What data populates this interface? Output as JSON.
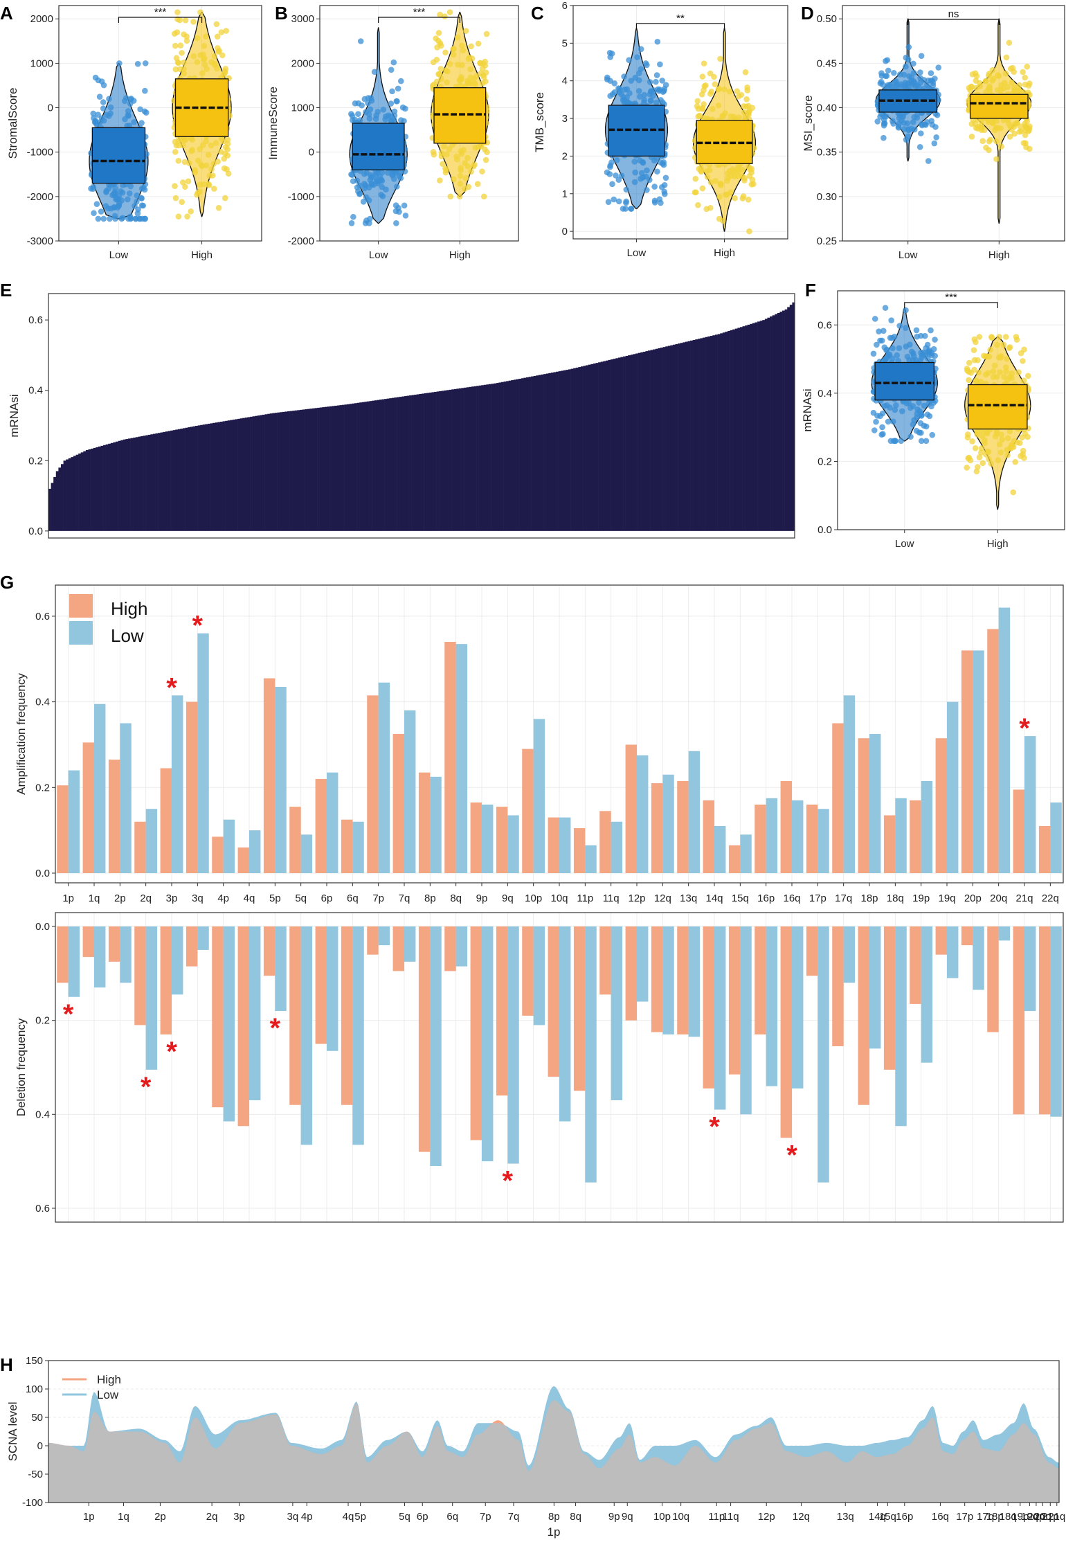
{
  "panels": {
    "A": "A",
    "B": "B",
    "C": "C",
    "D": "D",
    "E": "E",
    "F": "F",
    "G": "G",
    "H": "H"
  },
  "colors": {
    "low_box": "#1f77c6",
    "high_box": "#f5c211",
    "low_pt": "#3a8fd6",
    "high_pt": "#f2d33a",
    "e_bar": "#1e1b4b",
    "g_high": "#f4a582",
    "g_low": "#92c5de",
    "h_high": "#f4a582",
    "h_low": "#92c5de",
    "h_overlap": "#bdbdbd",
    "star": "#e41a1c"
  },
  "chart_data": [
    {
      "id": "A",
      "type": "violin-box",
      "ylabel": "StromalScore",
      "categories": [
        "Low",
        "High"
      ],
      "ylim": [
        -3000,
        2300
      ],
      "yticks": [
        -3000,
        -2000,
        -1000,
        0,
        1000,
        2000
      ],
      "significance": "***",
      "groups": [
        {
          "name": "Low",
          "min": -2500,
          "q1": -1700,
          "median": -1200,
          "q3": -450,
          "max": 1000,
          "whisk_lo": -2500,
          "whisk_hi": 1000
        },
        {
          "name": "High",
          "min": -2450,
          "q1": -650,
          "median": 0,
          "q3": 650,
          "max": 2150,
          "whisk_lo": -2450,
          "whisk_hi": 2150
        }
      ]
    },
    {
      "id": "B",
      "type": "violin-box",
      "ylabel": "ImmuneScore",
      "categories": [
        "Low",
        "High"
      ],
      "ylim": [
        -2000,
        3300
      ],
      "yticks": [
        -2000,
        -1000,
        0,
        1000,
        2000,
        3000
      ],
      "significance": "***",
      "groups": [
        {
          "name": "Low",
          "min": -1600,
          "q1": -400,
          "median": -50,
          "q3": 650,
          "max": 2800,
          "whisk_lo": -1600,
          "whisk_hi": 2800
        },
        {
          "name": "High",
          "min": -1000,
          "q1": 200,
          "median": 850,
          "q3": 1450,
          "max": 3150,
          "whisk_lo": -1000,
          "whisk_hi": 3150
        }
      ]
    },
    {
      "id": "C",
      "type": "violin-box",
      "ylabel": "TMB_score",
      "categories": [
        "Low",
        "High"
      ],
      "ylim": [
        -0.2,
        6
      ],
      "yticks": [
        0,
        1,
        2,
        3,
        4,
        5,
        6
      ],
      "significance": "**",
      "groups": [
        {
          "name": "Low",
          "min": 0.6,
          "q1": 2.0,
          "median": 2.7,
          "q3": 3.35,
          "max": 5.4,
          "whisk_lo": 0.6,
          "whisk_hi": 5.4
        },
        {
          "name": "High",
          "min": 0,
          "q1": 1.8,
          "median": 2.35,
          "q3": 2.95,
          "max": 5.4,
          "whisk_lo": 0,
          "whisk_hi": 5.4
        }
      ]
    },
    {
      "id": "D",
      "type": "violin-box",
      "ylabel": "MSI_score",
      "categories": [
        "Low",
        "High"
      ],
      "ylim": [
        0.25,
        0.515
      ],
      "yticks": [
        0.25,
        0.3,
        0.35,
        0.4,
        0.45,
        0.5
      ],
      "significance": "ns",
      "groups": [
        {
          "name": "Low",
          "min": 0.34,
          "q1": 0.395,
          "median": 0.408,
          "q3": 0.42,
          "max": 0.5,
          "whisk_lo": 0.34,
          "whisk_hi": 0.5
        },
        {
          "name": "High",
          "min": 0.27,
          "q1": 0.388,
          "median": 0.405,
          "q3": 0.415,
          "max": 0.5,
          "whisk_lo": 0.27,
          "whisk_hi": 0.5
        }
      ]
    },
    {
      "id": "E",
      "type": "bar",
      "ylabel": "mRNAsi",
      "ylim": [
        -0.02,
        0.675
      ],
      "yticks": [
        0.0,
        0.2,
        0.4,
        0.6
      ],
      "n_samples": 300,
      "value_curve": [
        [
          0,
          0.12
        ],
        [
          0.01,
          0.17
        ],
        [
          0.02,
          0.2
        ],
        [
          0.05,
          0.23
        ],
        [
          0.1,
          0.26
        ],
        [
          0.2,
          0.3
        ],
        [
          0.3,
          0.335
        ],
        [
          0.4,
          0.36
        ],
        [
          0.5,
          0.39
        ],
        [
          0.6,
          0.42
        ],
        [
          0.7,
          0.46
        ],
        [
          0.8,
          0.51
        ],
        [
          0.9,
          0.56
        ],
        [
          0.96,
          0.6
        ],
        [
          0.99,
          0.63
        ],
        [
          1,
          0.65
        ]
      ]
    },
    {
      "id": "F",
      "type": "violin-box",
      "ylabel": "mRNAsi",
      "categories": [
        "Low",
        "High"
      ],
      "ylim": [
        0,
        0.7
      ],
      "yticks": [
        0.0,
        0.2,
        0.4,
        0.6
      ],
      "significance": "***",
      "groups": [
        {
          "name": "Low",
          "min": 0.26,
          "q1": 0.38,
          "median": 0.43,
          "q3": 0.49,
          "max": 0.65,
          "whisk_lo": 0.26,
          "whisk_hi": 0.65
        },
        {
          "name": "High",
          "min": 0.06,
          "q1": 0.295,
          "median": 0.365,
          "q3": 0.425,
          "max": 0.565,
          "whisk_lo": 0.06,
          "whisk_hi": 0.565
        }
      ]
    },
    {
      "id": "G",
      "type": "bar",
      "legend": [
        "High",
        "Low"
      ],
      "categories": [
        "1p",
        "1q",
        "2p",
        "2q",
        "3p",
        "3q",
        "4p",
        "4q",
        "5p",
        "5q",
        "6p",
        "6q",
        "7p",
        "7q",
        "8p",
        "8q",
        "9p",
        "9q",
        "10p",
        "10q",
        "11p",
        "11q",
        "12p",
        "12q",
        "13q",
        "14q",
        "15q",
        "16p",
        "16q",
        "17p",
        "17q",
        "18p",
        "18q",
        "19p",
        "19q",
        "20p",
        "20q",
        "21q",
        "22q"
      ],
      "amplification": {
        "ylabel": "Amplification frequency",
        "ylim": [
          0,
          0.65
        ],
        "yticks": [
          0.0,
          0.2,
          0.4,
          0.6
        ],
        "series": [
          {
            "name": "High",
            "values": [
              0.205,
              0.305,
              0.265,
              0.12,
              0.245,
              0.4,
              0.085,
              0.06,
              0.455,
              0.155,
              0.22,
              0.125,
              0.415,
              0.325,
              0.235,
              0.54,
              0.165,
              0.155,
              0.29,
              0.13,
              0.105,
              0.145,
              0.3,
              0.21,
              0.215,
              0.17,
              0.065,
              0.16,
              0.215,
              0.16,
              0.35,
              0.315,
              0.135,
              0.17,
              0.315,
              0.52,
              0.57,
              0.195,
              0.11
            ]
          },
          {
            "name": "Low",
            "values": [
              0.24,
              0.395,
              0.35,
              0.15,
              0.415,
              0.56,
              0.125,
              0.1,
              0.435,
              0.09,
              0.235,
              0.12,
              0.445,
              0.38,
              0.225,
              0.535,
              0.16,
              0.135,
              0.36,
              0.13,
              0.065,
              0.12,
              0.275,
              0.23,
              0.285,
              0.11,
              0.09,
              0.175,
              0.17,
              0.15,
              0.415,
              0.325,
              0.175,
              0.215,
              0.4,
              0.52,
              0.62,
              0.32,
              0.165
            ]
          }
        ],
        "stars": [
          "3p",
          "3q",
          "21q"
        ]
      },
      "deletion": {
        "ylabel": "Deletion frequency",
        "ylim": [
          0,
          0.6
        ],
        "yticks": [
          0.0,
          0.2,
          0.4,
          0.6
        ],
        "series": [
          {
            "name": "High",
            "values": [
              0.12,
              0.065,
              0.075,
              0.21,
              0.23,
              0.085,
              0.385,
              0.425,
              0.105,
              0.38,
              0.25,
              0.38,
              0.06,
              0.095,
              0.48,
              0.095,
              0.455,
              0.36,
              0.19,
              0.32,
              0.35,
              0.145,
              0.2,
              0.225,
              0.23,
              0.345,
              0.315,
              0.23,
              0.45,
              0.105,
              0.255,
              0.38,
              0.305,
              0.165,
              0.06,
              0.04,
              0.225,
              0.4,
              0.4
            ]
          },
          {
            "name": "Low",
            "values": [
              0.15,
              0.13,
              0.12,
              0.305,
              0.145,
              0.05,
              0.415,
              0.37,
              0.18,
              0.465,
              0.265,
              0.465,
              0.04,
              0.075,
              0.51,
              0.085,
              0.5,
              0.505,
              0.21,
              0.415,
              0.545,
              0.37,
              0.16,
              0.23,
              0.235,
              0.39,
              0.4,
              0.34,
              0.345,
              0.545,
              0.12,
              0.26,
              0.425,
              0.29,
              0.11,
              0.135,
              0.03,
              0.18,
              0.405
            ]
          }
        ],
        "stars": [
          "1p",
          "2q",
          "3p",
          "5p",
          "9q",
          "14q",
          "16q"
        ]
      }
    },
    {
      "id": "H",
      "type": "area",
      "ylabel": "SCNA level",
      "xlabel": "1p",
      "legend": [
        "High",
        "Low"
      ],
      "ylim": [
        -100,
        150
      ],
      "yticks": [
        -100,
        -50,
        0,
        50,
        100,
        150
      ],
      "xticks": [
        "1p",
        "1q",
        "2p",
        "2q",
        "3p",
        "3q",
        "4p",
        "4q",
        "5p",
        "5q",
        "6p",
        "6q",
        "7p",
        "7q",
        "8p",
        "8q",
        "9p",
        "9q",
        "10p",
        "10q",
        "11p",
        "11q",
        "12p",
        "12q",
        "13q",
        "14q",
        "15q",
        "16p",
        "16q",
        "17p",
        "17q",
        "18p",
        "18q",
        "19p",
        "19q",
        "20p",
        "20q",
        "21p",
        "21q",
        "22p"
      ],
      "xtick_pos": [
        0.037,
        0.074,
        0.113,
        0.168,
        0.197,
        0.254,
        0.269,
        0.313,
        0.326,
        0.373,
        0.392,
        0.424,
        0.459,
        0.489,
        0.532,
        0.555,
        0.596,
        0.61,
        0.647,
        0.667,
        0.705,
        0.72,
        0.758,
        0.795,
        0.842,
        0.876,
        0.887,
        0.905,
        0.943,
        0.969,
        0.991,
        1.001,
        1.015,
        1.028,
        1.038,
        1.045,
        1.052,
        1.06,
        1.067,
        1.075
      ],
      "profile_high": [
        [
          0,
          5
        ],
        [
          0.02,
          0
        ],
        [
          0.035,
          -10
        ],
        [
          0.045,
          60
        ],
        [
          0.06,
          25
        ],
        [
          0.09,
          25
        ],
        [
          0.115,
          5
        ],
        [
          0.13,
          -30
        ],
        [
          0.145,
          50
        ],
        [
          0.165,
          -5
        ],
        [
          0.19,
          40
        ],
        [
          0.225,
          55
        ],
        [
          0.24,
          0
        ],
        [
          0.27,
          -15
        ],
        [
          0.29,
          0
        ],
        [
          0.305,
          75
        ],
        [
          0.315,
          -30
        ],
        [
          0.335,
          0
        ],
        [
          0.355,
          25
        ],
        [
          0.37,
          -20
        ],
        [
          0.385,
          35
        ],
        [
          0.395,
          -10
        ],
        [
          0.41,
          -20
        ],
        [
          0.425,
          20
        ],
        [
          0.445,
          45
        ],
        [
          0.465,
          10
        ],
        [
          0.475,
          -45
        ],
        [
          0.5,
          80
        ],
        [
          0.515,
          60
        ],
        [
          0.53,
          -15
        ],
        [
          0.545,
          -40
        ],
        [
          0.565,
          -5
        ],
        [
          0.575,
          20
        ],
        [
          0.585,
          -30
        ],
        [
          0.6,
          -20
        ],
        [
          0.62,
          -35
        ],
        [
          0.64,
          0
        ],
        [
          0.66,
          -30
        ],
        [
          0.68,
          10
        ],
        [
          0.7,
          30
        ],
        [
          0.715,
          40
        ],
        [
          0.73,
          -10
        ],
        [
          0.75,
          -20
        ],
        [
          0.77,
          -10
        ],
        [
          0.79,
          -30
        ],
        [
          0.805,
          -10
        ],
        [
          0.82,
          -20
        ],
        [
          0.835,
          -15
        ],
        [
          0.85,
          0
        ],
        [
          0.865,
          30
        ],
        [
          0.875,
          50
        ],
        [
          0.885,
          -10
        ],
        [
          0.895,
          -15
        ],
        [
          0.905,
          10
        ],
        [
          0.915,
          25
        ],
        [
          0.925,
          -5
        ],
        [
          0.94,
          -10
        ],
        [
          0.955,
          20
        ],
        [
          0.965,
          40
        ],
        [
          0.975,
          20
        ],
        [
          0.99,
          -30
        ],
        [
          1.0,
          -40
        ]
      ],
      "profile_low": [
        [
          0,
          5
        ],
        [
          0.02,
          0
        ],
        [
          0.035,
          0
        ],
        [
          0.045,
          95
        ],
        [
          0.06,
          25
        ],
        [
          0.09,
          30
        ],
        [
          0.115,
          10
        ],
        [
          0.13,
          -10
        ],
        [
          0.145,
          70
        ],
        [
          0.165,
          20
        ],
        [
          0.19,
          45
        ],
        [
          0.225,
          58
        ],
        [
          0.24,
          5
        ],
        [
          0.27,
          -5
        ],
        [
          0.29,
          10
        ],
        [
          0.305,
          78
        ],
        [
          0.315,
          -20
        ],
        [
          0.335,
          10
        ],
        [
          0.355,
          25
        ],
        [
          0.37,
          -10
        ],
        [
          0.385,
          45
        ],
        [
          0.395,
          0
        ],
        [
          0.41,
          -10
        ],
        [
          0.425,
          40
        ],
        [
          0.445,
          40
        ],
        [
          0.465,
          25
        ],
        [
          0.475,
          -35
        ],
        [
          0.5,
          105
        ],
        [
          0.515,
          65
        ],
        [
          0.53,
          -10
        ],
        [
          0.545,
          -25
        ],
        [
          0.565,
          15
        ],
        [
          0.575,
          40
        ],
        [
          0.585,
          -25
        ],
        [
          0.6,
          0
        ],
        [
          0.62,
          0
        ],
        [
          0.64,
          10
        ],
        [
          0.66,
          -20
        ],
        [
          0.68,
          20
        ],
        [
          0.7,
          35
        ],
        [
          0.715,
          50
        ],
        [
          0.73,
          0
        ],
        [
          0.75,
          0
        ],
        [
          0.77,
          5
        ],
        [
          0.79,
          0
        ],
        [
          0.805,
          0
        ],
        [
          0.82,
          5
        ],
        [
          0.835,
          10
        ],
        [
          0.85,
          15
        ],
        [
          0.865,
          45
        ],
        [
          0.875,
          70
        ],
        [
          0.885,
          5
        ],
        [
          0.895,
          0
        ],
        [
          0.905,
          25
        ],
        [
          0.915,
          45
        ],
        [
          0.925,
          10
        ],
        [
          0.94,
          20
        ],
        [
          0.955,
          40
        ],
        [
          0.965,
          75
        ],
        [
          0.975,
          30
        ],
        [
          0.99,
          -20
        ],
        [
          1.0,
          -30
        ]
      ]
    }
  ]
}
